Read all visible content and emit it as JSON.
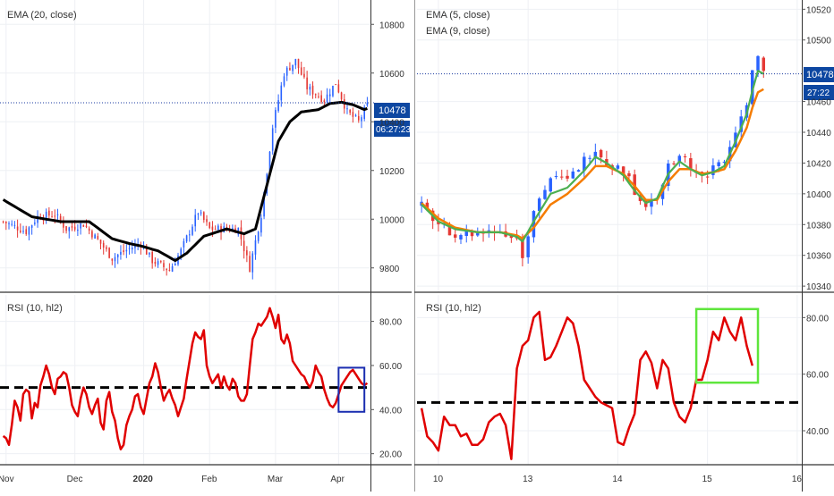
{
  "colors": {
    "up": "#2962ff",
    "down": "#e53935",
    "ema20": "#000000",
    "ema5": "#4caf50",
    "ema9": "#f57c00",
    "rsi": "#e00000",
    "grid": "#eef0f4",
    "axis": "#555555",
    "price_tag_bg": "#0d47a1",
    "box_left": "#1a2db0",
    "box_right": "#5ee63c"
  },
  "chart_data": [
    {
      "type": "candlestick",
      "panel": "left-price",
      "title": "EMA (20, close)",
      "ylim": [
        9700,
        10900
      ],
      "yticks": [
        9800,
        10000,
        10200,
        10400,
        10600,
        10800
      ],
      "x_labels": [
        "Nov",
        "Dec",
        "2020",
        "Feb",
        "Mar",
        "Apr"
      ],
      "x_label_bars": [
        1,
        25,
        49,
        72,
        95,
        117
      ],
      "num_bars": 128,
      "close_path": [
        [
          0,
          9990
        ],
        [
          8,
          9950
        ],
        [
          12,
          10010
        ],
        [
          18,
          10020
        ],
        [
          22,
          9960
        ],
        [
          28,
          9980
        ],
        [
          34,
          9900
        ],
        [
          38,
          9840
        ],
        [
          44,
          9880
        ],
        [
          48,
          9900
        ],
        [
          52,
          9830
        ],
        [
          58,
          9790
        ],
        [
          62,
          9870
        ],
        [
          68,
          10030
        ],
        [
          72,
          9960
        ],
        [
          76,
          9960
        ],
        [
          82,
          9960
        ],
        [
          86,
          9800
        ],
        [
          90,
          10020
        ],
        [
          94,
          10380
        ],
        [
          98,
          10600
        ],
        [
          102,
          10650
        ],
        [
          106,
          10540
        ],
        [
          112,
          10490
        ],
        [
          116,
          10560
        ],
        [
          120,
          10440
        ],
        [
          124,
          10400
        ],
        [
          128,
          10490
        ]
      ],
      "ema_path": [
        [
          0,
          10080
        ],
        [
          10,
          10010
        ],
        [
          20,
          9990
        ],
        [
          30,
          9990
        ],
        [
          38,
          9920
        ],
        [
          44,
          9900
        ],
        [
          48,
          9890
        ],
        [
          54,
          9870
        ],
        [
          60,
          9830
        ],
        [
          64,
          9860
        ],
        [
          70,
          9930
        ],
        [
          78,
          9960
        ],
        [
          84,
          9940
        ],
        [
          88,
          9960
        ],
        [
          92,
          10140
        ],
        [
          96,
          10320
        ],
        [
          100,
          10400
        ],
        [
          104,
          10440
        ],
        [
          110,
          10450
        ],
        [
          114,
          10475
        ],
        [
          118,
          10480
        ],
        [
          122,
          10470
        ],
        [
          126,
          10450
        ],
        [
          128,
          10460
        ]
      ],
      "current_price": "10478",
      "countdown": "06:27:23"
    },
    {
      "type": "line",
      "panel": "left-rsi",
      "title": "RSI (10, hl2)",
      "ylim": [
        15,
        92
      ],
      "yticks": [
        "20.00",
        "40.00",
        "60.00",
        "80.00"
      ],
      "ytick_values": [
        20,
        40,
        60,
        80
      ],
      "reference_line": 50,
      "num_bars": 128,
      "values": [
        28,
        27,
        24,
        33,
        44,
        41,
        35,
        47,
        49,
        48,
        36,
        43,
        41,
        51,
        55,
        60,
        56,
        50,
        47,
        54,
        55,
        57,
        56,
        50,
        42,
        39,
        37,
        45,
        50,
        47,
        41,
        38,
        42,
        45,
        34,
        31,
        44,
        48,
        39,
        35,
        27,
        22,
        24,
        33,
        37,
        40,
        46,
        47,
        41,
        38,
        45,
        52,
        55,
        61,
        57,
        50,
        44,
        47,
        49,
        45,
        42,
        37,
        41,
        45,
        54,
        62,
        70,
        75,
        73,
        72,
        76,
        60,
        55,
        52,
        54,
        56,
        50,
        55,
        51,
        49,
        54,
        52,
        46,
        44,
        44,
        47,
        60,
        72,
        75,
        79,
        78,
        80,
        82,
        86,
        82,
        77,
        83,
        72,
        70,
        74,
        70,
        62,
        60,
        58,
        56,
        55,
        52,
        50,
        53,
        60,
        57,
        55,
        49,
        45,
        42,
        41,
        43,
        47,
        51,
        53,
        55,
        57,
        58,
        56,
        54,
        52,
        51,
        52
      ]
    },
    {
      "type": "candlestick",
      "panel": "right-price",
      "title": "EMA (5, close)",
      "subtitle": "EMA (9, close)",
      "ylim": [
        10336,
        10526
      ],
      "yticks": [
        10340,
        10360,
        10380,
        10400,
        10420,
        10440,
        10460,
        10500,
        10520
      ],
      "x_labels": [
        "10",
        "13",
        "14",
        "15",
        "16"
      ],
      "x_label_bars": [
        3,
        19,
        35,
        51,
        67
      ],
      "num_bars": 68,
      "close_path": [
        [
          0,
          10392
        ],
        [
          3,
          10380
        ],
        [
          6,
          10374
        ],
        [
          10,
          10374
        ],
        [
          14,
          10376
        ],
        [
          17,
          10371
        ],
        [
          18,
          10360
        ],
        [
          20,
          10390
        ],
        [
          23,
          10410
        ],
        [
          26,
          10408
        ],
        [
          29,
          10422
        ],
        [
          31,
          10430
        ],
        [
          33,
          10420
        ],
        [
          36,
          10415
        ],
        [
          38,
          10402
        ],
        [
          40,
          10392
        ],
        [
          42,
          10398
        ],
        [
          44,
          10420
        ],
        [
          46,
          10425
        ],
        [
          48,
          10418
        ],
        [
          50,
          10410
        ],
        [
          52,
          10418
        ],
        [
          54,
          10420
        ],
        [
          56,
          10440
        ],
        [
          58,
          10460
        ],
        [
          59,
          10480
        ],
        [
          60,
          10490
        ],
        [
          61,
          10478
        ]
      ],
      "ema5_path": [
        [
          0,
          10393
        ],
        [
          3,
          10382
        ],
        [
          6,
          10377
        ],
        [
          10,
          10375
        ],
        [
          14,
          10375
        ],
        [
          17,
          10372
        ],
        [
          18,
          10369
        ],
        [
          20,
          10382
        ],
        [
          23,
          10400
        ],
        [
          26,
          10404
        ],
        [
          29,
          10415
        ],
        [
          31,
          10424
        ],
        [
          33,
          10420
        ],
        [
          36,
          10412
        ],
        [
          38,
          10402
        ],
        [
          40,
          10394
        ],
        [
          42,
          10397
        ],
        [
          44,
          10413
        ],
        [
          46,
          10421
        ],
        [
          48,
          10416
        ],
        [
          50,
          10412
        ],
        [
          52,
          10414
        ],
        [
          54,
          10418
        ],
        [
          56,
          10434
        ],
        [
          58,
          10452
        ],
        [
          59,
          10467
        ],
        [
          60,
          10480
        ],
        [
          61,
          10478
        ]
      ],
      "ema9_path": [
        [
          0,
          10394
        ],
        [
          3,
          10384
        ],
        [
          6,
          10378
        ],
        [
          10,
          10375
        ],
        [
          14,
          10375
        ],
        [
          17,
          10373
        ],
        [
          18,
          10371
        ],
        [
          20,
          10378
        ],
        [
          23,
          10393
        ],
        [
          26,
          10400
        ],
        [
          29,
          10410
        ],
        [
          31,
          10418
        ],
        [
          33,
          10418
        ],
        [
          36,
          10413
        ],
        [
          38,
          10405
        ],
        [
          40,
          10396
        ],
        [
          42,
          10396
        ],
        [
          44,
          10408
        ],
        [
          46,
          10416
        ],
        [
          48,
          10416
        ],
        [
          50,
          10413
        ],
        [
          52,
          10414
        ],
        [
          54,
          10416
        ],
        [
          56,
          10428
        ],
        [
          58,
          10443
        ],
        [
          59,
          10456
        ],
        [
          60,
          10466
        ],
        [
          61,
          10468
        ]
      ],
      "current_price": "10478",
      "countdown": "27:22"
    },
    {
      "type": "line",
      "panel": "right-rsi",
      "title": "RSI (10, hl2)",
      "ylim": [
        28,
        88
      ],
      "yticks": [
        "40.00",
        "60.00",
        "80.00"
      ],
      "ytick_values": [
        40,
        60,
        80
      ],
      "reference_line": 50,
      "num_bars": 68,
      "values": [
        48,
        38,
        36,
        33,
        45,
        42,
        42,
        38,
        39,
        35,
        35,
        37,
        43,
        45,
        46,
        42,
        30,
        62,
        70,
        72,
        80,
        82,
        65,
        66,
        70,
        75,
        80,
        78,
        70,
        58,
        55,
        52,
        50,
        49,
        48,
        36,
        35,
        41,
        46,
        65,
        68,
        64,
        55,
        65,
        62,
        50,
        45,
        43,
        48,
        58,
        58,
        65,
        75,
        72,
        80,
        75,
        72,
        80,
        70,
        63
      ]
    }
  ],
  "left_box": {
    "from_bar": 117,
    "to_bar": 126,
    "from_value": 39,
    "to_value": 59
  },
  "right_box": {
    "from_bar": 49,
    "to_bar": 60,
    "from_value": 57,
    "to_value": 83
  }
}
